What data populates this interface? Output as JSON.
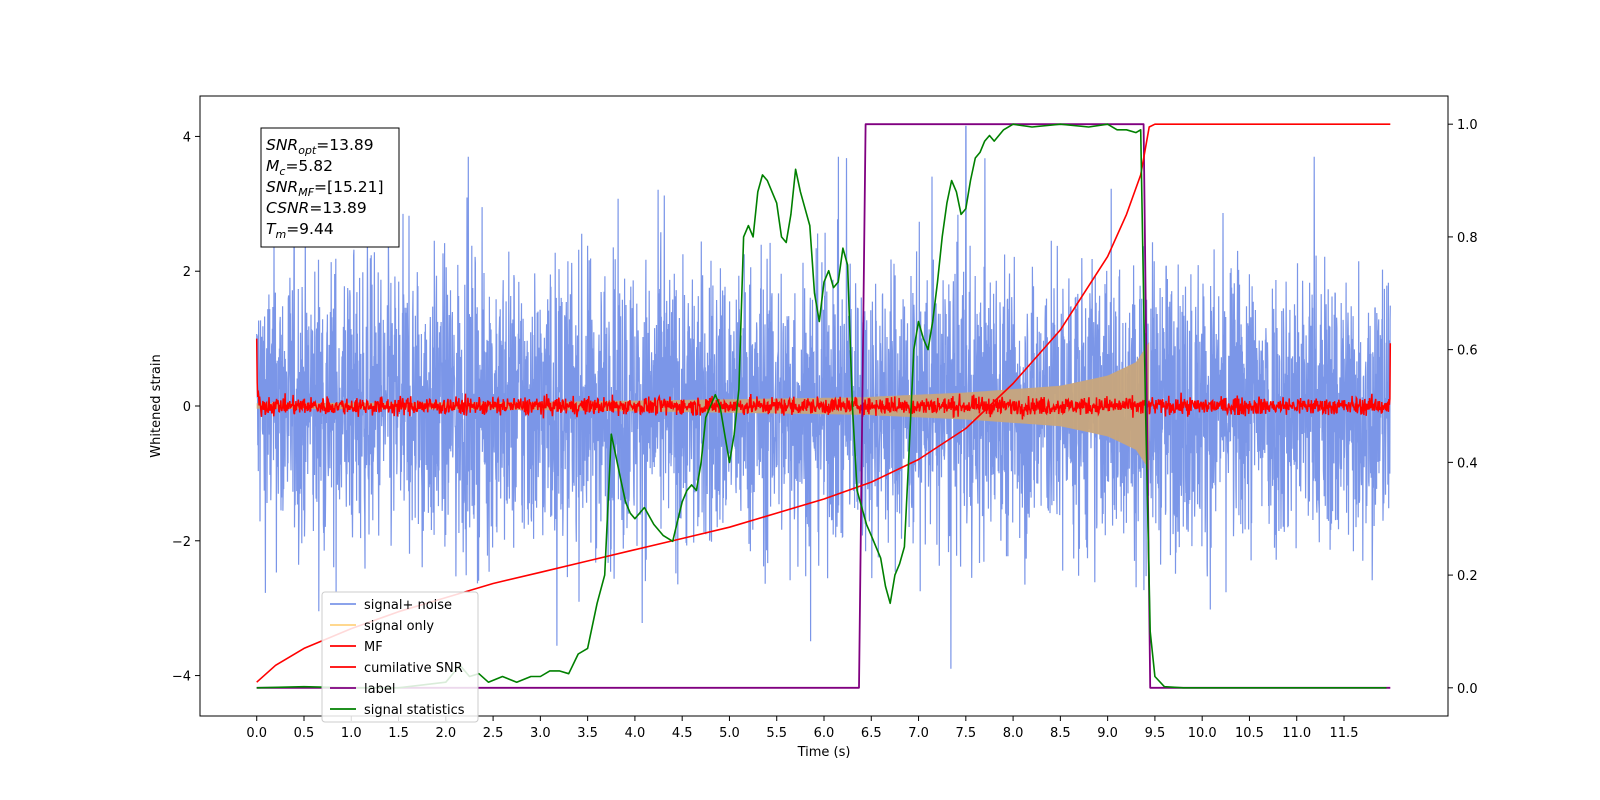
{
  "chart_data": {
    "type": "line",
    "title": "",
    "xlabel": "Time (s)",
    "ylabel": "Whitened strain",
    "xlim": [
      -0.6,
      12.6
    ],
    "ylim": [
      -4.6,
      4.6
    ],
    "ylim_right": [
      -0.05,
      1.05
    ],
    "grid": false,
    "legend_position": "lower-left",
    "x_ticks": [
      "0.0",
      "0.5",
      "1.0",
      "1.5",
      "2.0",
      "2.5",
      "3.0",
      "3.5",
      "4.0",
      "4.5",
      "5.0",
      "5.5",
      "6.0",
      "6.5",
      "7.0",
      "7.5",
      "8.0",
      "8.5",
      "9.0",
      "9.5",
      "10.0",
      "10.5",
      "11.0",
      "11.5"
    ],
    "y_ticks_left": [
      "−4",
      "−2",
      "0",
      "2",
      "4"
    ],
    "y_ticks_right": [
      "0.0",
      "0.2",
      "0.4",
      "0.6",
      "0.8",
      "1.0"
    ],
    "annotation": [
      {
        "base": "SNR",
        "sub": "opt",
        "value": "=13.89"
      },
      {
        "base": "M",
        "sub": "c",
        "value": "=5.82"
      },
      {
        "base": "SNR",
        "sub": "MF",
        "value": "=[15.21]"
      },
      {
        "base": "CSNR",
        "sub": "",
        "value": "=13.89"
      },
      {
        "base": "T",
        "sub": "m",
        "value": "=9.44"
      }
    ],
    "series": [
      {
        "name": "signal+ noise",
        "color": "#7b96e8",
        "axis": "left",
        "description_values": {
          "x_range": [
            0,
            11.99
          ],
          "typical_amplitude": 2.0,
          "max_peak": 4.15
        }
      },
      {
        "name": "signal only",
        "color": "#c8a57c",
        "axis": "left",
        "envelope": {
          "x": [
            0,
            3,
            5,
            6.4,
            7.5,
            8.5,
            9,
            9.3,
            9.44
          ],
          "amplitude": [
            0.04,
            0.06,
            0.1,
            0.13,
            0.2,
            0.3,
            0.45,
            0.65,
            0.95
          ]
        }
      },
      {
        "name": "MF",
        "color": "#ff0000",
        "axis": "left",
        "description_values": {
          "x_range": [
            0,
            11.99
          ],
          "baseline": 0.0,
          "noise_amplitude": 0.12,
          "edges": {
            "x0": 0.0,
            "y0": 1.0,
            "x1": 11.99,
            "y1": 0.93
          }
        }
      },
      {
        "name": "cumilative SNR",
        "color": "#ff0000",
        "axis": "right",
        "x": [
          0.0,
          0.2,
          0.5,
          1.0,
          1.5,
          2.0,
          2.5,
          3.0,
          3.5,
          4.0,
          4.5,
          5.0,
          5.5,
          6.0,
          6.5,
          7.0,
          7.5,
          8.0,
          8.5,
          9.0,
          9.2,
          9.35,
          9.44,
          9.5,
          11.99
        ],
        "y": [
          0.01,
          0.04,
          0.07,
          0.105,
          0.135,
          0.16,
          0.185,
          0.205,
          0.225,
          0.245,
          0.265,
          0.285,
          0.31,
          0.335,
          0.365,
          0.405,
          0.46,
          0.54,
          0.635,
          0.765,
          0.84,
          0.91,
          0.995,
          1.0,
          1.0
        ]
      },
      {
        "name": "label",
        "color": "#800080",
        "axis": "right",
        "x": [
          0.0,
          6.37,
          6.44,
          9.38,
          9.45,
          11.99
        ],
        "y": [
          0.0,
          0.0,
          1.0,
          1.0,
          0.0,
          0.0
        ]
      },
      {
        "name": "signal statistics",
        "color": "#008000",
        "axis": "right",
        "x": [
          0.0,
          0.5,
          1.0,
          1.5,
          2.0,
          2.15,
          2.25,
          2.35,
          2.45,
          2.6,
          2.75,
          2.9,
          3.0,
          3.1,
          3.2,
          3.3,
          3.4,
          3.5,
          3.6,
          3.68,
          3.75,
          3.8,
          3.85,
          3.9,
          3.95,
          4.0,
          4.1,
          4.2,
          4.3,
          4.4,
          4.5,
          4.55,
          4.6,
          4.65,
          4.7,
          4.75,
          4.8,
          4.85,
          4.9,
          4.95,
          5.0,
          5.05,
          5.1,
          5.15,
          5.2,
          5.25,
          5.3,
          5.35,
          5.4,
          5.45,
          5.5,
          5.55,
          5.6,
          5.65,
          5.7,
          5.75,
          5.8,
          5.85,
          5.9,
          5.95,
          6.0,
          6.05,
          6.1,
          6.15,
          6.2,
          6.25,
          6.3,
          6.35,
          6.4,
          6.45,
          6.5,
          6.55,
          6.6,
          6.65,
          6.7,
          6.75,
          6.8,
          6.85,
          6.9,
          6.95,
          7.0,
          7.05,
          7.1,
          7.15,
          7.2,
          7.25,
          7.3,
          7.35,
          7.4,
          7.45,
          7.5,
          7.55,
          7.6,
          7.65,
          7.7,
          7.75,
          7.8,
          7.9,
          8.0,
          8.2,
          8.5,
          8.8,
          9.0,
          9.1,
          9.2,
          9.3,
          9.35,
          9.4,
          9.45,
          9.5,
          9.6,
          9.8,
          10.5,
          11.5,
          11.95
        ],
        "y": [
          0.0,
          0.002,
          0.0,
          0.0,
          0.01,
          0.04,
          0.02,
          0.025,
          0.01,
          0.02,
          0.01,
          0.02,
          0.02,
          0.03,
          0.03,
          0.025,
          0.06,
          0.07,
          0.15,
          0.2,
          0.45,
          0.41,
          0.37,
          0.33,
          0.31,
          0.3,
          0.32,
          0.29,
          0.27,
          0.26,
          0.33,
          0.35,
          0.36,
          0.35,
          0.4,
          0.48,
          0.5,
          0.52,
          0.5,
          0.45,
          0.4,
          0.45,
          0.53,
          0.8,
          0.82,
          0.8,
          0.88,
          0.91,
          0.9,
          0.88,
          0.86,
          0.8,
          0.79,
          0.84,
          0.92,
          0.88,
          0.85,
          0.82,
          0.7,
          0.65,
          0.72,
          0.74,
          0.71,
          0.72,
          0.78,
          0.75,
          0.5,
          0.35,
          0.32,
          0.29,
          0.27,
          0.25,
          0.23,
          0.18,
          0.15,
          0.2,
          0.22,
          0.25,
          0.42,
          0.6,
          0.65,
          0.62,
          0.6,
          0.65,
          0.72,
          0.8,
          0.86,
          0.9,
          0.88,
          0.84,
          0.85,
          0.9,
          0.94,
          0.95,
          0.97,
          0.98,
          0.97,
          0.99,
          1.0,
          0.995,
          1.0,
          0.995,
          1.0,
          0.99,
          0.99,
          0.985,
          0.99,
          0.5,
          0.1,
          0.02,
          0.002,
          0.0,
          0.0,
          0.0,
          0.0
        ]
      }
    ]
  }
}
